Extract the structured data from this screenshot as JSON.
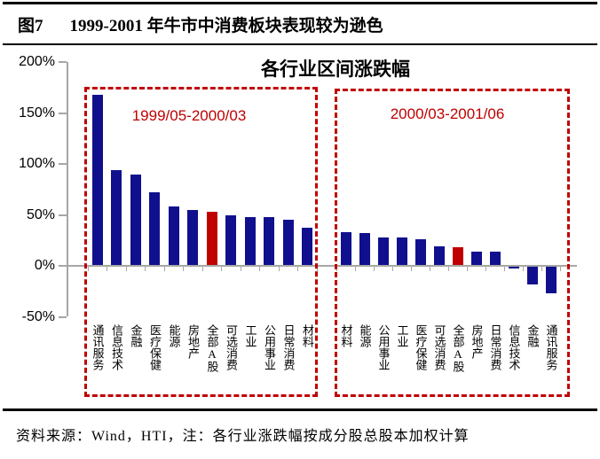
{
  "header": {
    "figure_label": "图7",
    "title": "1999-2001 年牛市中消费板块表现较为逊色"
  },
  "chart_data": {
    "type": "bar",
    "title": "各行业区间涨跌幅",
    "xlabel": "",
    "ylabel": "",
    "ylim": [
      -50,
      200
    ],
    "y_tick_values": [
      200,
      150,
      100,
      50,
      0,
      -50
    ],
    "y_tick_suffix": "%",
    "grid": false,
    "legend_position": "none",
    "highlight_category": "全部A股",
    "groups": [
      {
        "label": "1999/05-2000/03",
        "categories": [
          "通讯服务",
          "信息技术",
          "金融",
          "医疗保健",
          "能源",
          "房地产",
          "全部A股",
          "可选消费",
          "工业",
          "公用事业",
          "日常消费",
          "材料"
        ],
        "values": [
          168,
          94,
          90,
          72,
          58,
          55,
          53,
          50,
          48,
          48,
          45,
          37
        ]
      },
      {
        "label": "2000/03-2001/06",
        "categories": [
          "材料",
          "能源",
          "公用事业",
          "工业",
          "医疗保健",
          "可选消费",
          "全部A股",
          "房地产",
          "日常消费",
          "信息技术",
          "金融",
          "通讯服务"
        ],
        "values": [
          33,
          32,
          28,
          28,
          26,
          19,
          18,
          14,
          14,
          -3,
          -18,
          -27
        ]
      }
    ],
    "colors": {
      "bar": "#10108e",
      "highlight": "#c00000",
      "frame": "#c00000",
      "axis": "#a6a6a6"
    }
  },
  "footer": {
    "source": "资料来源：Wind，HTI，注：各行业涨跌幅按成分股总股本加权计算"
  }
}
